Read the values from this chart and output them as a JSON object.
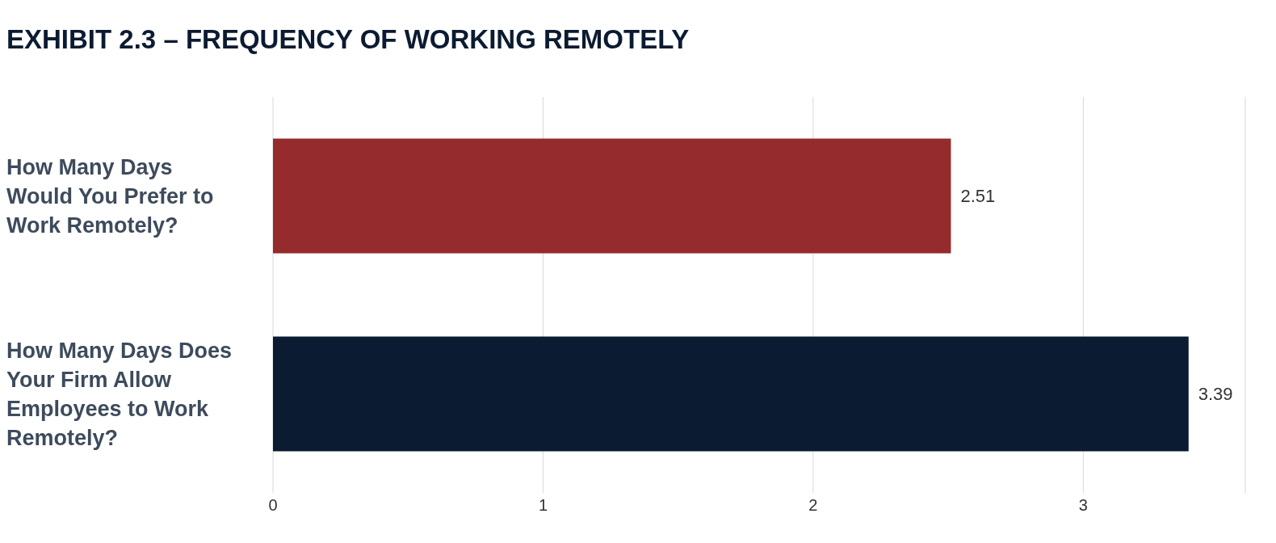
{
  "chart_data": {
    "type": "bar",
    "orientation": "horizontal",
    "title": "EXHIBIT 2.3 – FREQUENCY OF WORKING REMOTELY",
    "categories": [
      "How Many Days Would You Prefer to Work Remotely?",
      "How Many Days Does Your Firm Allow Employees to Work Remotely?"
    ],
    "values": [
      2.51,
      3.39
    ],
    "colors": [
      "#962b2d",
      "#0b1b31"
    ],
    "xlim": [
      0,
      3.6
    ],
    "xticks": [
      0,
      1,
      2,
      3
    ],
    "grid": "x",
    "data_labels": true
  }
}
